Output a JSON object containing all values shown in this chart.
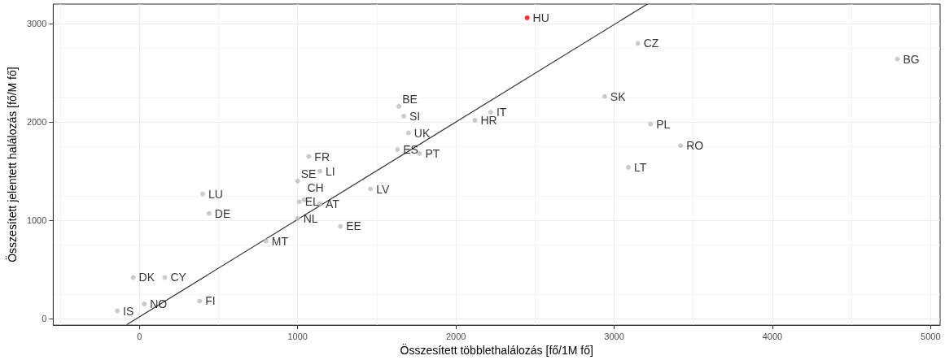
{
  "chart_data": {
    "type": "scatter",
    "xlabel": "Összesített többlethalálozás [fő/1M fő]",
    "ylabel": "Összesített jelentett halálozás [fő/M fő]",
    "xlim": [
      -545,
      5060
    ],
    "ylim": [
      -65,
      3200
    ],
    "xticks": [
      0,
      1000,
      2000,
      3000,
      4000,
      5000
    ],
    "yticks": [
      0,
      1000,
      2000,
      3000
    ],
    "grid": true,
    "marker": "circle",
    "series": [
      {
        "x": [
          -140,
          30,
          -40,
          160,
          380,
          400,
          440,
          800,
          1000,
          1010,
          1040,
          1140,
          1000,
          1140,
          1070,
          1270,
          1460,
          1630,
          1770,
          1700,
          1670,
          1640,
          2120,
          2220,
          2450,
          3150,
          2940,
          3230,
          3420,
          3090,
          4790
        ],
        "values": [
          80,
          150,
          420,
          420,
          180,
          1270,
          1070,
          790,
          1020,
          1190,
          1210,
          1170,
          1400,
          1500,
          1650,
          940,
          1320,
          1720,
          1680,
          1890,
          2060,
          2160,
          2020,
          2100,
          3060,
          2800,
          2260,
          1980,
          1760,
          1540,
          2640
        ],
        "value_labels": [
          "IS",
          "NO",
          "DK",
          "CY",
          "FI",
          "LU",
          "DE",
          "MT",
          "NL",
          "EL",
          "CH",
          "AT",
          "SE",
          "LI",
          "FR",
          "EE",
          "LV",
          "ES",
          "PT",
          "UK",
          "SI",
          "BE",
          "HR",
          "IT",
          "HU",
          "CZ",
          "SK",
          "PL",
          "RO",
          "LT",
          "BG"
        ],
        "colors": [
          "#bebebe",
          "#bebebe",
          "#bebebe",
          "#bebebe",
          "#bebebe",
          "#bebebe",
          "#bebebe",
          "#bebebe",
          "#bebebe",
          "#bebebe",
          "#bebebe",
          "#bebebe",
          "#bebebe",
          "#bebebe",
          "#bebebe",
          "#bebebe",
          "#bebebe",
          "#bebebe",
          "#bebebe",
          "#bebebe",
          "#bebebe",
          "#bebebe",
          "#bebebe",
          "#bebebe",
          "#ff0000",
          "#bebebe",
          "#bebebe",
          "#bebebe",
          "#bebebe",
          "#bebebe",
          "#bebebe"
        ]
      },
      {
        "type": "line",
        "x": [
          -80,
          3210
        ],
        "values": [
          -60,
          3200
        ],
        "color": "#333333",
        "marker": "none",
        "line_style": "solid"
      }
    ]
  }
}
